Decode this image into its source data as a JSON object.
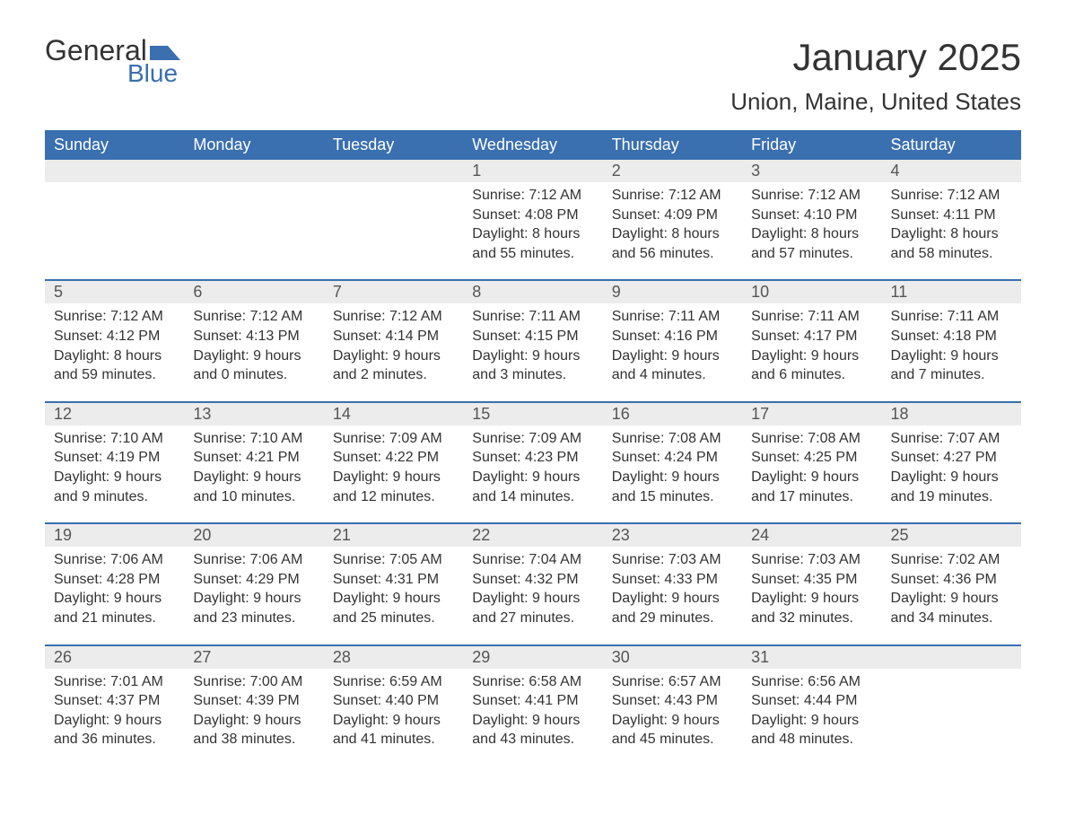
{
  "logo": {
    "word1": "General",
    "word2": "Blue",
    "flag_color": "#3a6fb0"
  },
  "title": "January 2025",
  "location": "Union, Maine, United States",
  "colors": {
    "header_bg": "#3a6fb0",
    "header_text": "#ffffff",
    "daynum_bg": "#ececec",
    "rule": "#3a6fb0",
    "body_text": "#333333"
  },
  "day_headers": [
    "Sunday",
    "Monday",
    "Tuesday",
    "Wednesday",
    "Thursday",
    "Friday",
    "Saturday"
  ],
  "weeks": [
    [
      null,
      null,
      null,
      {
        "n": "1",
        "sunrise": "7:12 AM",
        "sunset": "4:08 PM",
        "daylight": "8 hours and 55 minutes."
      },
      {
        "n": "2",
        "sunrise": "7:12 AM",
        "sunset": "4:09 PM",
        "daylight": "8 hours and 56 minutes."
      },
      {
        "n": "3",
        "sunrise": "7:12 AM",
        "sunset": "4:10 PM",
        "daylight": "8 hours and 57 minutes."
      },
      {
        "n": "4",
        "sunrise": "7:12 AM",
        "sunset": "4:11 PM",
        "daylight": "8 hours and 58 minutes."
      }
    ],
    [
      {
        "n": "5",
        "sunrise": "7:12 AM",
        "sunset": "4:12 PM",
        "daylight": "8 hours and 59 minutes."
      },
      {
        "n": "6",
        "sunrise": "7:12 AM",
        "sunset": "4:13 PM",
        "daylight": "9 hours and 0 minutes."
      },
      {
        "n": "7",
        "sunrise": "7:12 AM",
        "sunset": "4:14 PM",
        "daylight": "9 hours and 2 minutes."
      },
      {
        "n": "8",
        "sunrise": "7:11 AM",
        "sunset": "4:15 PM",
        "daylight": "9 hours and 3 minutes."
      },
      {
        "n": "9",
        "sunrise": "7:11 AM",
        "sunset": "4:16 PM",
        "daylight": "9 hours and 4 minutes."
      },
      {
        "n": "10",
        "sunrise": "7:11 AM",
        "sunset": "4:17 PM",
        "daylight": "9 hours and 6 minutes."
      },
      {
        "n": "11",
        "sunrise": "7:11 AM",
        "sunset": "4:18 PM",
        "daylight": "9 hours and 7 minutes."
      }
    ],
    [
      {
        "n": "12",
        "sunrise": "7:10 AM",
        "sunset": "4:19 PM",
        "daylight": "9 hours and 9 minutes."
      },
      {
        "n": "13",
        "sunrise": "7:10 AM",
        "sunset": "4:21 PM",
        "daylight": "9 hours and 10 minutes."
      },
      {
        "n": "14",
        "sunrise": "7:09 AM",
        "sunset": "4:22 PM",
        "daylight": "9 hours and 12 minutes."
      },
      {
        "n": "15",
        "sunrise": "7:09 AM",
        "sunset": "4:23 PM",
        "daylight": "9 hours and 14 minutes."
      },
      {
        "n": "16",
        "sunrise": "7:08 AM",
        "sunset": "4:24 PM",
        "daylight": "9 hours and 15 minutes."
      },
      {
        "n": "17",
        "sunrise": "7:08 AM",
        "sunset": "4:25 PM",
        "daylight": "9 hours and 17 minutes."
      },
      {
        "n": "18",
        "sunrise": "7:07 AM",
        "sunset": "4:27 PM",
        "daylight": "9 hours and 19 minutes."
      }
    ],
    [
      {
        "n": "19",
        "sunrise": "7:06 AM",
        "sunset": "4:28 PM",
        "daylight": "9 hours and 21 minutes."
      },
      {
        "n": "20",
        "sunrise": "7:06 AM",
        "sunset": "4:29 PM",
        "daylight": "9 hours and 23 minutes."
      },
      {
        "n": "21",
        "sunrise": "7:05 AM",
        "sunset": "4:31 PM",
        "daylight": "9 hours and 25 minutes."
      },
      {
        "n": "22",
        "sunrise": "7:04 AM",
        "sunset": "4:32 PM",
        "daylight": "9 hours and 27 minutes."
      },
      {
        "n": "23",
        "sunrise": "7:03 AM",
        "sunset": "4:33 PM",
        "daylight": "9 hours and 29 minutes."
      },
      {
        "n": "24",
        "sunrise": "7:03 AM",
        "sunset": "4:35 PM",
        "daylight": "9 hours and 32 minutes."
      },
      {
        "n": "25",
        "sunrise": "7:02 AM",
        "sunset": "4:36 PM",
        "daylight": "9 hours and 34 minutes."
      }
    ],
    [
      {
        "n": "26",
        "sunrise": "7:01 AM",
        "sunset": "4:37 PM",
        "daylight": "9 hours and 36 minutes."
      },
      {
        "n": "27",
        "sunrise": "7:00 AM",
        "sunset": "4:39 PM",
        "daylight": "9 hours and 38 minutes."
      },
      {
        "n": "28",
        "sunrise": "6:59 AM",
        "sunset": "4:40 PM",
        "daylight": "9 hours and 41 minutes."
      },
      {
        "n": "29",
        "sunrise": "6:58 AM",
        "sunset": "4:41 PM",
        "daylight": "9 hours and 43 minutes."
      },
      {
        "n": "30",
        "sunrise": "6:57 AM",
        "sunset": "4:43 PM",
        "daylight": "9 hours and 45 minutes."
      },
      {
        "n": "31",
        "sunrise": "6:56 AM",
        "sunset": "4:44 PM",
        "daylight": "9 hours and 48 minutes."
      },
      null
    ]
  ],
  "labels": {
    "sunrise": "Sunrise: ",
    "sunset": "Sunset: ",
    "daylight": "Daylight: "
  }
}
